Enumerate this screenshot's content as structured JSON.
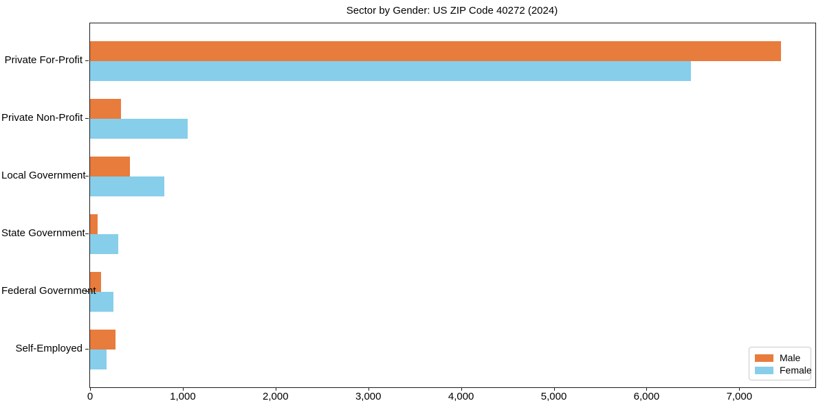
{
  "chart": {
    "title": "Sector by Gender: US ZIP Code 40272 (2024)"
  },
  "chart_data": {
    "type": "bar",
    "orientation": "horizontal",
    "title": "Sector by Gender: US ZIP Code 40272 (2024)",
    "categories": [
      "Private For-Profit",
      "Private Non-Profit",
      "Local Government",
      "State Government",
      "Federal Government",
      "Self-Employed"
    ],
    "series": [
      {
        "name": "Male",
        "color": "#e87c3c",
        "values": [
          7450,
          335,
          430,
          80,
          120,
          275
        ]
      },
      {
        "name": "Female",
        "color": "#87ceeb",
        "values": [
          6480,
          1050,
          800,
          305,
          250,
          180
        ]
      }
    ],
    "xlabel": "",
    "ylabel": "",
    "xlim": [
      0,
      7820
    ],
    "xticks": [
      0,
      1000,
      2000,
      3000,
      4000,
      5000,
      6000,
      7000
    ],
    "xtick_labels": [
      "0",
      "1,000",
      "2,000",
      "3,000",
      "4,000",
      "5,000",
      "6,000",
      "7,000"
    ],
    "grid": false,
    "legend_position": "lower right"
  }
}
